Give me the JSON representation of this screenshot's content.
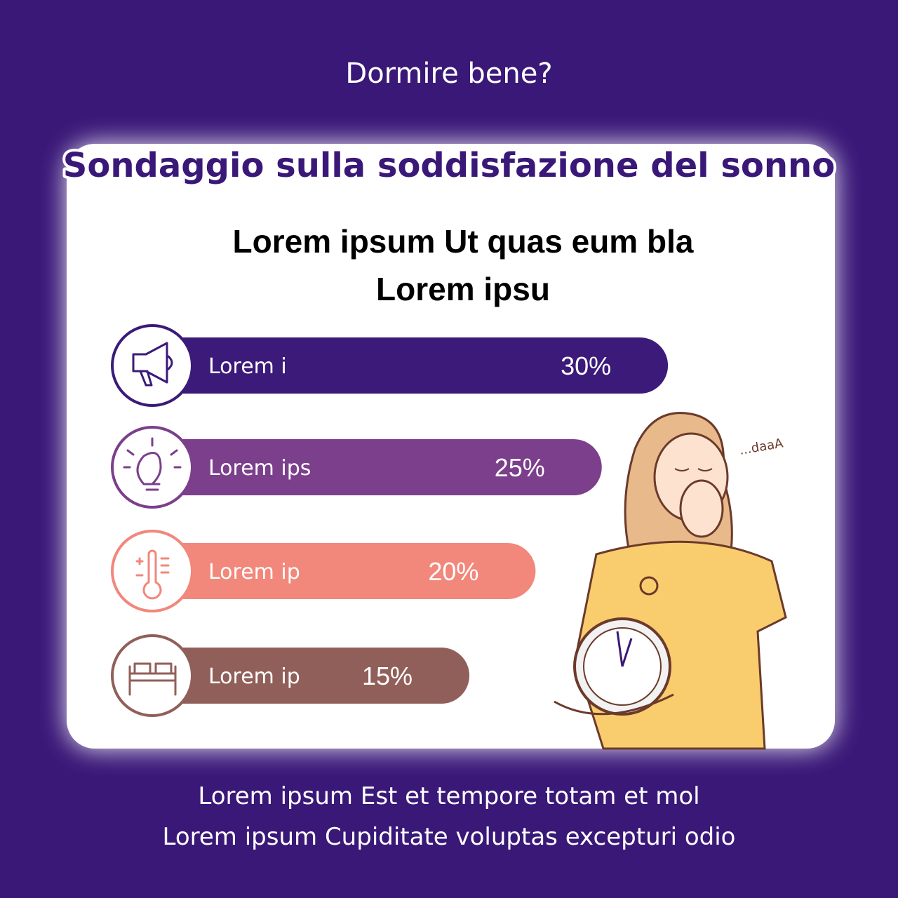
{
  "subtitle": "Dormire bene?",
  "title": "Sondaggio sulla soddisfazione del sonno",
  "chart_data": {
    "type": "bar",
    "orientation": "horizontal",
    "title": "Lorem ipsum Ut quas eum bla Lorem ipsu",
    "categories": [
      "Lorem i",
      "Lorem ips",
      "Lorem ip",
      "Lorem ip"
    ],
    "values": [
      30,
      25,
      20,
      15
    ],
    "value_labels": [
      "30%",
      "25%",
      "20%",
      "15%"
    ],
    "colors": [
      "#3b1a7a",
      "#7b3f8c",
      "#f2877b",
      "#915f59"
    ]
  },
  "annotation": "...daaA",
  "footer": [
    "Lorem ipsum Est et tempore totam et mol",
    "Lorem ipsum Cupiditate voluptas excepturi odio"
  ]
}
